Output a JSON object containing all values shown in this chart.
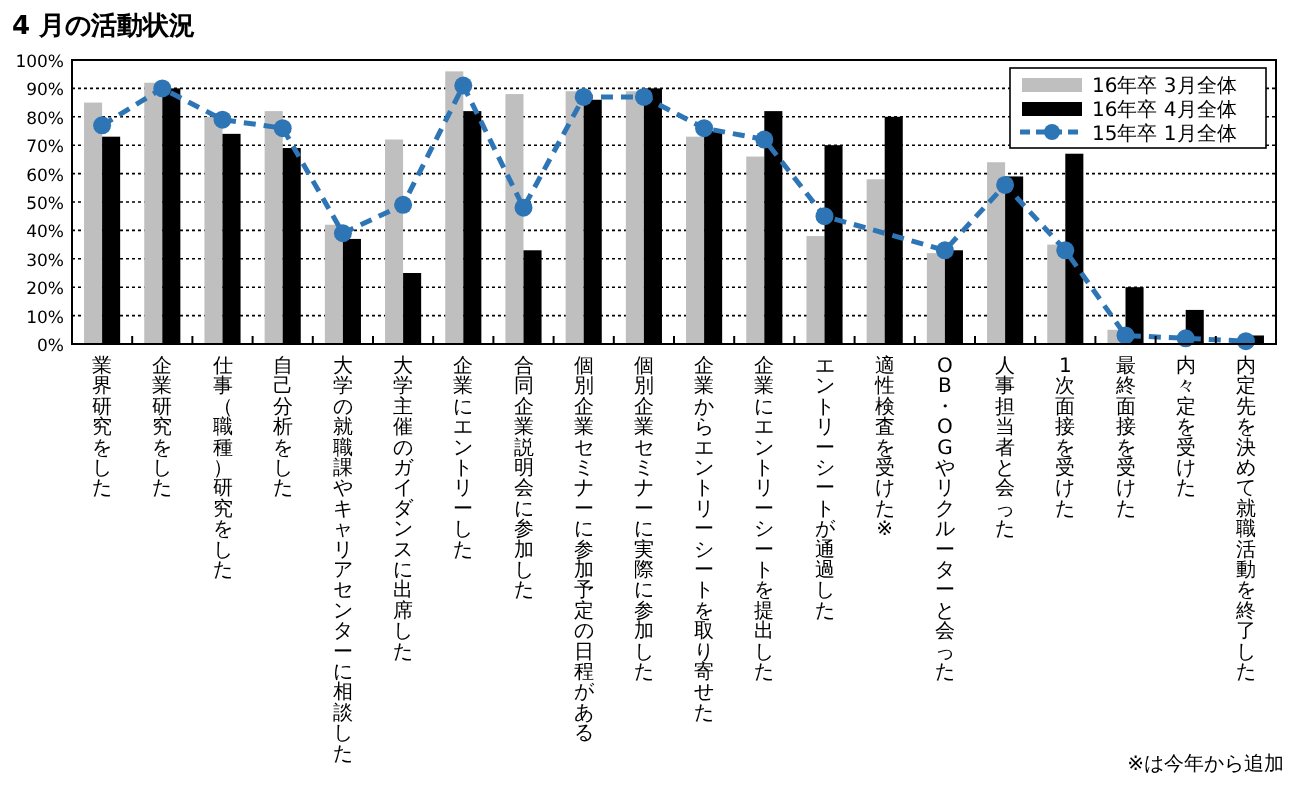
{
  "chart_data": {
    "type": "bar",
    "title": "4 月の活動状況",
    "annotations": [
      "※は今年から追加"
    ],
    "categories": [
      "業界研究をした",
      "企業研究をした",
      "仕事（職種）研究をした",
      "自己分析をした",
      "大学の就職課やキャリアセンターに相談した",
      "大学主催のガイダンスに出席した",
      "企業にエントリーした",
      "合同企業説明会に参加した",
      "個別企業セミナーに参加予定の日程がある",
      "個別企業セミナーに実際に参加した",
      "企業からエントリーシートを取り寄せた",
      "企業にエントリーシートを提出した",
      "エントリーシートが通過した",
      "適性検査を受けた※",
      "OB・OGやリクルーターと会った",
      "人事担当者と会った",
      "1次面接を受けた",
      "最終面接を受けた",
      "内々定を受けた",
      "内定先を決めて就職活動を終了した"
    ],
    "series": [
      {
        "name": "16年卒 3月全体",
        "color": "#bfbfbf",
        "values": [
          85,
          92,
          80,
          82,
          42,
          72,
          96,
          88,
          89,
          89,
          73,
          66,
          38,
          58,
          32,
          64,
          35,
          5,
          null,
          null
        ]
      },
      {
        "name": "16年卒 4月全体",
        "color": "#000000",
        "values": [
          73,
          90,
          74,
          69,
          37,
          25,
          82,
          33,
          86,
          90,
          75,
          82,
          70,
          80,
          33,
          59,
          67,
          20,
          12,
          3
        ]
      },
      {
        "name": "15年卒 1月全体",
        "type": "line",
        "color": "#2e75b6",
        "marker": "circle",
        "line_style": "dashed",
        "values": [
          77,
          90,
          79,
          76,
          39,
          49,
          91,
          48,
          87,
          87,
          76,
          72,
          45,
          null,
          33,
          56,
          33,
          3,
          2,
          1
        ]
      }
    ],
    "ylim": [
      0,
      100
    ],
    "yticks": [
      {
        "value": 0,
        "label": "0%"
      },
      {
        "value": 10,
        "label": "10%"
      },
      {
        "value": 20,
        "label": "20%"
      },
      {
        "value": 30,
        "label": "30%"
      },
      {
        "value": 40,
        "label": "40%"
      },
      {
        "value": 50,
        "label": "50%"
      },
      {
        "value": 60,
        "label": "60%"
      },
      {
        "value": 70,
        "label": "70%"
      },
      {
        "value": 80,
        "label": "80%"
      },
      {
        "value": 90,
        "label": "90%"
      },
      {
        "value": 100,
        "label": "100%"
      }
    ],
    "grid": "y",
    "legend": "top right"
  }
}
